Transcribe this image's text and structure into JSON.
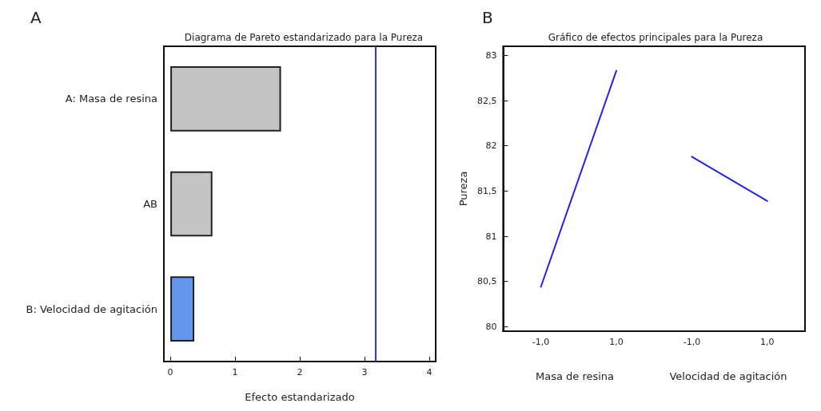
{
  "chart_data": [
    {
      "type": "bar",
      "orientation": "horizontal",
      "title": "Diagrama de Pareto estandarizado para la Pureza",
      "xlabel": "Efecto estandarizado",
      "annotations": [
        "A"
      ],
      "categories": [
        "A: Masa de resina",
        "AB",
        "B: Velocidad de agitación"
      ],
      "values": [
        1.71,
        0.65,
        0.37
      ],
      "colors": [
        "#c4c4c4",
        "#c4c4c4",
        "#6495ed"
      ],
      "xlim": [
        -0.1,
        4.1
      ],
      "xticks": [
        0,
        1,
        2,
        3,
        4
      ],
      "grid": false,
      "ref_lines": [
        {
          "axis": "x",
          "value": 3.17,
          "color": "#3333ff",
          "line_style": "solid"
        }
      ]
    },
    {
      "type": "line",
      "title": "Gráfico de efectos principales para la Pureza",
      "ylabel": "Pureza",
      "annotations": [
        "B",
        "Masa de resina",
        "Velocidad de agitación"
      ],
      "categories": [
        "-1,0",
        "1,0",
        "-1,0",
        "1,0"
      ],
      "series": [
        {
          "color": "#2222ee",
          "values": [
            80.44,
            82.83,
            null,
            null
          ]
        },
        {
          "color": "#2222ee",
          "values": [
            null,
            null,
            81.88,
            81.39
          ]
        }
      ],
      "ylim": [
        79.95,
        83.1
      ],
      "yticks": [
        80,
        {
          "value": 80.5,
          "label": "80,5"
        },
        81,
        {
          "value": 81.5,
          "label": "81,5"
        },
        82,
        {
          "value": 82.5,
          "label": "82,5"
        },
        83
      ],
      "grid": false,
      "marker": "none",
      "line_style": "solid"
    }
  ]
}
